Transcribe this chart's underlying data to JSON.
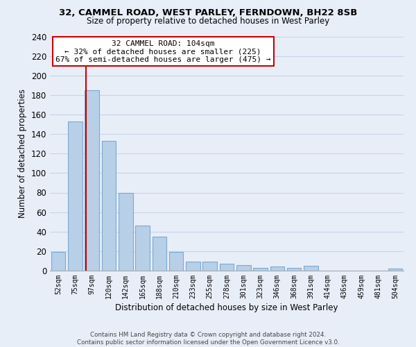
{
  "title_line1": "32, CAMMEL ROAD, WEST PARLEY, FERNDOWN, BH22 8SB",
  "title_line2": "Size of property relative to detached houses in West Parley",
  "xlabel": "Distribution of detached houses by size in West Parley",
  "ylabel": "Number of detached properties",
  "bar_labels": [
    "52sqm",
    "75sqm",
    "97sqm",
    "120sqm",
    "142sqm",
    "165sqm",
    "188sqm",
    "210sqm",
    "233sqm",
    "255sqm",
    "278sqm",
    "301sqm",
    "323sqm",
    "346sqm",
    "368sqm",
    "391sqm",
    "414sqm",
    "436sqm",
    "459sqm",
    "481sqm",
    "504sqm"
  ],
  "bar_heights": [
    19,
    153,
    185,
    133,
    80,
    46,
    35,
    19,
    9,
    9,
    7,
    6,
    3,
    4,
    3,
    5,
    0,
    0,
    0,
    0,
    2
  ],
  "bar_color": "#b8cfe8",
  "bar_edge_color": "#7aaad0",
  "vline_index": 2,
  "vline_color": "#cc0000",
  "ylim": [
    0,
    240
  ],
  "yticks": [
    0,
    20,
    40,
    60,
    80,
    100,
    120,
    140,
    160,
    180,
    200,
    220,
    240
  ],
  "annotation_title": "32 CAMMEL ROAD: 104sqm",
  "annotation_line1": "← 32% of detached houses are smaller (225)",
  "annotation_line2": "67% of semi-detached houses are larger (475) →",
  "annotation_box_color": "#ffffff",
  "annotation_box_edge": "#cc0000",
  "footer_line1": "Contains HM Land Registry data © Crown copyright and database right 2024.",
  "footer_line2": "Contains public sector information licensed under the Open Government Licence v3.0.",
  "background_color": "#e8eef8",
  "grid_color": "#c8d4e8"
}
